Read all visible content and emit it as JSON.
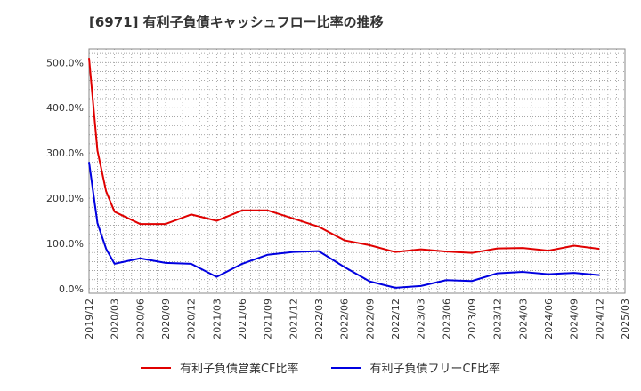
{
  "title": "[6971]  有利子負債キャッシュフロー比率の推移",
  "chart_data": {
    "type": "line",
    "title": "[6971]  有利子負債キャッシュフロー比率の推移",
    "xlabel": "",
    "ylabel": "",
    "x_tick_labels": [
      "2019/12",
      "2020/03",
      "2020/06",
      "2020/09",
      "2020/12",
      "2021/03",
      "2021/06",
      "2021/09",
      "2021/12",
      "2022/03",
      "2022/06",
      "2022/09",
      "2022/12",
      "2023/03",
      "2023/06",
      "2023/09",
      "2023/12",
      "2024/03",
      "2024/06",
      "2024/09",
      "2024/12",
      "2025/03"
    ],
    "y_tick_labels": [
      "0.0%",
      "100.0%",
      "200.0%",
      "300.0%",
      "400.0%",
      "500.0%"
    ],
    "ylim": [
      -10,
      530
    ],
    "grid": true,
    "legend_position": "bottom",
    "series": [
      {
        "name": "有利子負債営業CF比率",
        "color": "#e00000",
        "points": [
          [
            0,
            510
          ],
          [
            0.33,
            305
          ],
          [
            0.67,
            215
          ],
          [
            1,
            170
          ],
          [
            2,
            143
          ],
          [
            3,
            143
          ],
          [
            4,
            164
          ],
          [
            5,
            150
          ],
          [
            6,
            173
          ],
          [
            7,
            173
          ],
          [
            8,
            155
          ],
          [
            9,
            137
          ],
          [
            10,
            107
          ],
          [
            11,
            96
          ],
          [
            12,
            81
          ],
          [
            13,
            87
          ],
          [
            14,
            82
          ],
          [
            15,
            79
          ],
          [
            16,
            89
          ],
          [
            17,
            90
          ],
          [
            18,
            84
          ],
          [
            19,
            95
          ],
          [
            20,
            88
          ]
        ]
      },
      {
        "name": "有利子負債フリーCF比率",
        "color": "#0000e0",
        "points": [
          [
            0,
            280
          ],
          [
            0.33,
            145
          ],
          [
            0.67,
            88
          ],
          [
            1,
            55
          ],
          [
            2,
            67
          ],
          [
            3,
            57
          ],
          [
            4,
            55
          ],
          [
            5,
            26
          ],
          [
            6,
            55
          ],
          [
            7,
            75
          ],
          [
            8,
            81
          ],
          [
            9,
            83
          ],
          [
            10,
            48
          ],
          [
            11,
            16
          ],
          [
            12,
            2
          ],
          [
            13,
            6
          ],
          [
            14,
            19
          ],
          [
            15,
            17
          ],
          [
            16,
            34
          ],
          [
            17,
            37
          ],
          [
            18,
            32
          ],
          [
            19,
            35
          ],
          [
            20,
            30
          ]
        ]
      }
    ]
  }
}
